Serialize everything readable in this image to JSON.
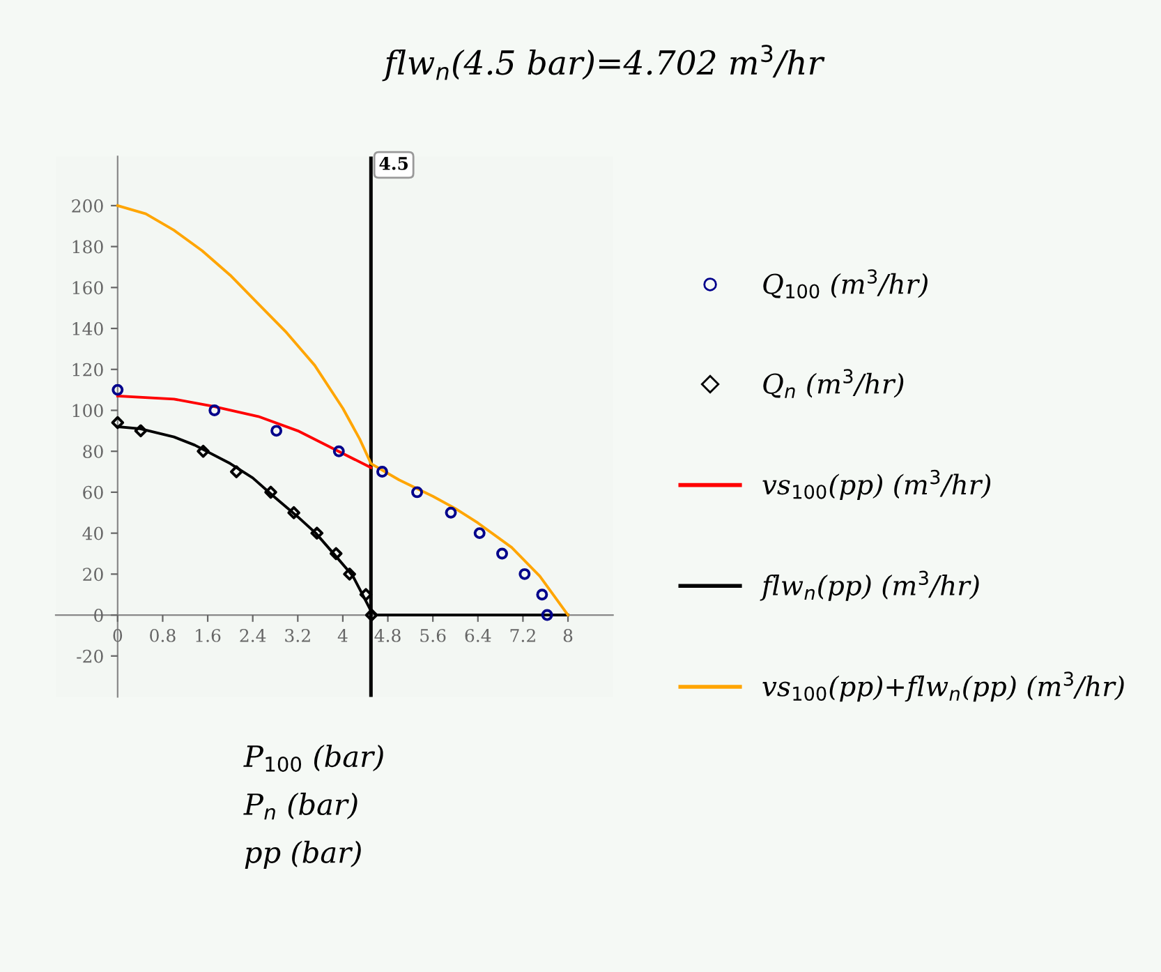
{
  "chart_data": {
    "type": "line",
    "title": "flw$_{n}$(4.5 bar)=4.702 m$^{3}$/hr",
    "xlabel": "P$_{100}$ (bar)\nP$_{n}$ (bar)\npp (bar)",
    "xlim": [
      -1.1,
      8.8
    ],
    "ylim": [
      -40,
      224
    ],
    "xticks": [
      0,
      0.8,
      1.6,
      2.4,
      3.2,
      4,
      4.8,
      5.6,
      6.4,
      7.2,
      8
    ],
    "yticks": [
      -20,
      0,
      20,
      40,
      60,
      80,
      100,
      120,
      140,
      160,
      180,
      200
    ],
    "grid": false,
    "legend": "right",
    "ref_lines": [
      {
        "axis": "x",
        "value": 4.5,
        "label": "4.5",
        "color": "#000000"
      }
    ],
    "series": [
      {
        "name": "Q$_{100}$ (m$^{3}$/hr)",
        "type": "scatter",
        "marker": "circle",
        "color": "#00008b",
        "x": [
          0,
          1.72,
          2.82,
          3.93,
          4.7,
          5.32,
          5.92,
          6.43,
          6.83,
          7.23,
          7.54,
          7.63
        ],
        "values": [
          110,
          100,
          90,
          80,
          70,
          60,
          50,
          40,
          30,
          20,
          10,
          0
        ]
      },
      {
        "name": "Q$_{n}$ (m$^{3}$/hr)",
        "type": "scatter",
        "marker": "diamond",
        "color": "#000000",
        "x": [
          0,
          0.41,
          1.52,
          2.11,
          2.72,
          3.13,
          3.54,
          3.88,
          4.12,
          4.41,
          4.51
        ],
        "values": [
          94,
          90,
          80,
          70,
          60,
          50,
          40,
          30,
          20,
          10,
          0
        ]
      },
      {
        "name": "vs$_{100}$(pp) (m$^{3}$/hr)",
        "color": "#ff0000",
        "x": [
          0,
          1,
          1.69,
          2.5,
          3.2,
          3.85,
          4.5
        ],
        "values": [
          107,
          105.5,
          102,
          97,
          90,
          81,
          72
        ]
      },
      {
        "name": "flw$_{n}$(pp) (m$^{3}$/hr)",
        "color": "#000000",
        "x": [
          0,
          0.4,
          1,
          1.37,
          2,
          2.4,
          2.77,
          3.2,
          3.52,
          3.9,
          4.18,
          4.35,
          4.5,
          4.6,
          8
        ],
        "values": [
          92,
          91,
          87,
          83,
          74,
          67,
          58,
          48,
          40,
          28,
          19,
          10,
          2,
          0,
          0
        ]
      },
      {
        "name": "vs$_{100}$(pp)+flw$_{n}$(pp) (m$^{3}$/hr)",
        "color": "#ffa500",
        "x": [
          0,
          0.5,
          1,
          1.5,
          2,
          2.5,
          3,
          3.5,
          4,
          4.3,
          4.5,
          5,
          5.6,
          6,
          6.4,
          7,
          7.5,
          8
        ],
        "values": [
          200,
          196,
          188,
          178,
          166,
          152,
          138,
          122,
          101,
          86,
          74,
          66,
          58,
          52,
          45,
          33,
          19,
          0
        ]
      }
    ]
  }
}
